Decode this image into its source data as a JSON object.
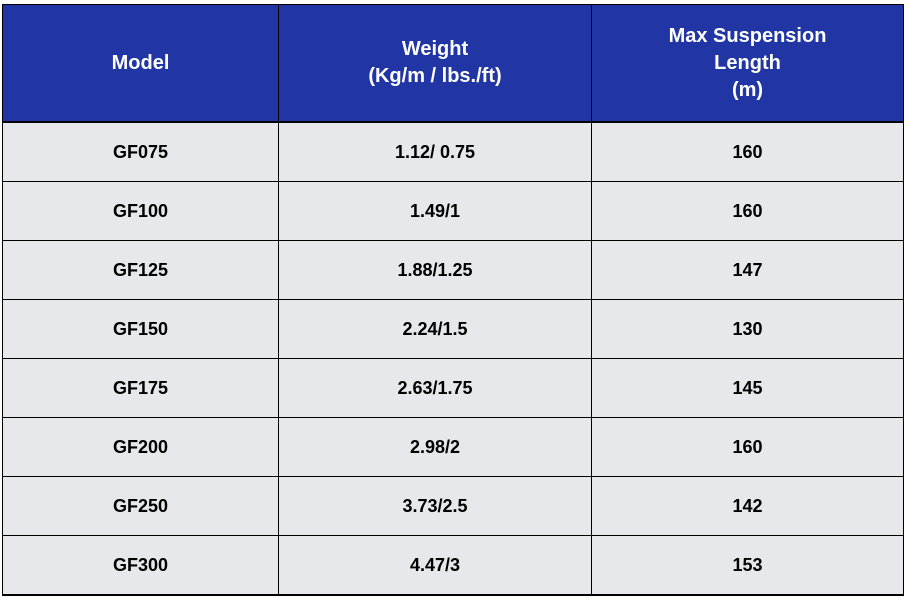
{
  "table": {
    "headers": [
      "Model",
      "Weight\n(Kg/m / lbs./ft)",
      "Max Suspension\nLength\n(m)"
    ],
    "rows": [
      [
        "GF075",
        "1.12/ 0.75",
        "160"
      ],
      [
        "GF100",
        "1.49/1",
        "160"
      ],
      [
        "GF125",
        "1.88/1.25",
        "147"
      ],
      [
        "GF150",
        "2.24/1.5",
        "130"
      ],
      [
        "GF175",
        "2.63/1.75",
        "145"
      ],
      [
        "GF200",
        "2.98/2",
        "160"
      ],
      [
        "GF250",
        "3.73/2.5",
        "142"
      ],
      [
        "GF300",
        "4.47/3",
        "153"
      ]
    ]
  },
  "colors": {
    "header_background": "#2136a4",
    "header_text": "#ffffff",
    "cell_background": "#e7e8ec",
    "border": "#000000"
  }
}
